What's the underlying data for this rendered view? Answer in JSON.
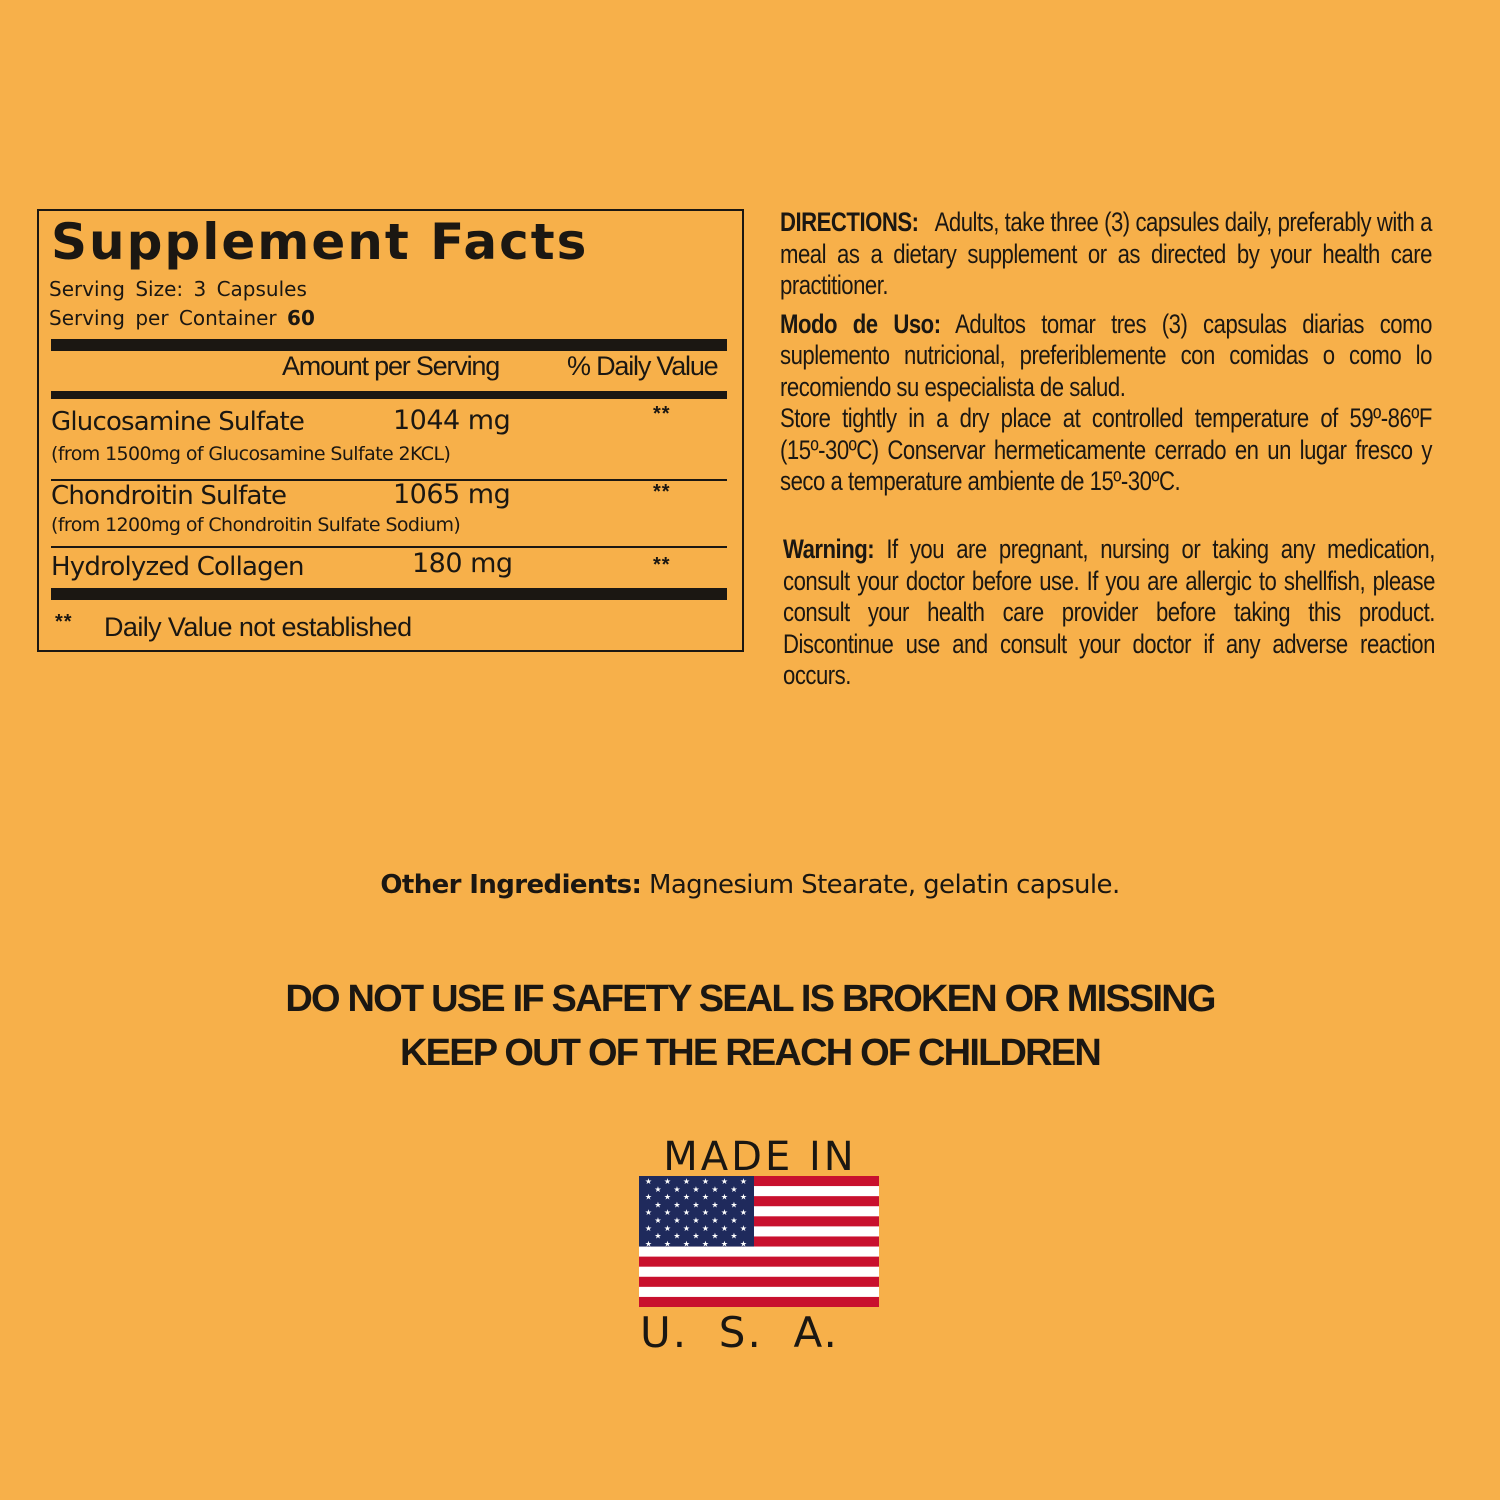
{
  "supplement_facts": {
    "title": "Supplement Facts",
    "serving_size_label": "Serving  Size:  3 Capsules",
    "servings_label": "Serving  per  Container",
    "servings_value": "60",
    "header_amount": "Amount per Serving",
    "header_dv": "% Daily Value",
    "rows": [
      {
        "name": "Glucosamine Sulfate",
        "amount": "1044 mg",
        "dv": "**",
        "note": "(from 1500mg of Glucosamine Sulfate 2KCL)"
      },
      {
        "name": "Chondroitin Sulfate",
        "amount": "1065 mg",
        "dv": "**",
        "note": "(from 1200mg of Chondroitin Sulfate"
      },
      {
        "name": "Hydrolyzed Collagen",
        "amount": "180 mg",
        "dv": "**",
        "note": "Sodium)"
      }
    ],
    "footnote_mark": "**",
    "footnote": "Daily Value not established"
  },
  "directions": {
    "label": "DIRECTIONS:",
    "text": "Adults, take three (3) capsules daily, preferably with a meal as a dietary supplement or as directed by your health care practitioner.",
    "modo_label": "Modo de Uso:",
    "modo_text": "Adultos tomar tres (3) capsulas diarias como suplemento nutricional, preferiblemente con comidas o como lo recomiendo su especialista de salud.",
    "storage": "Store tightly in a dry place at controlled temperature of 59º-86ºF (15º-30ºC) Conservar hermeticamente cerrado en un lugar fresco y seco a temperature ambiente de 15º-30ºC."
  },
  "warning": {
    "label": "Warning:",
    "text": "If you are pregnant, nursing or taking any medication, consult your doctor before use. If you are allergic to shellfish, please consult your health care provider before taking this product. Discontinue use and consult your doctor if any adverse reaction occurs."
  },
  "other_ingredients": {
    "label": "Other Ingredients:",
    "text": "Magnesium Stearate, gelatin capsule."
  },
  "safety": {
    "line1": "DO NOT USE IF SAFETY SEAL IS BROKEN OR MISSING",
    "line2": "KEEP OUT OF THE REACH OF CHILDREN"
  },
  "made_in": {
    "top": "MADE IN",
    "bottom": "U.  S.  A.",
    "icon": "us-flag-icon",
    "colors": {
      "red": "#C8102E",
      "blue": "#1F2A5C",
      "white": "#FFFFFF"
    }
  },
  "colors": {
    "background": "#F7B04A",
    "text": "#1B1712"
  }
}
